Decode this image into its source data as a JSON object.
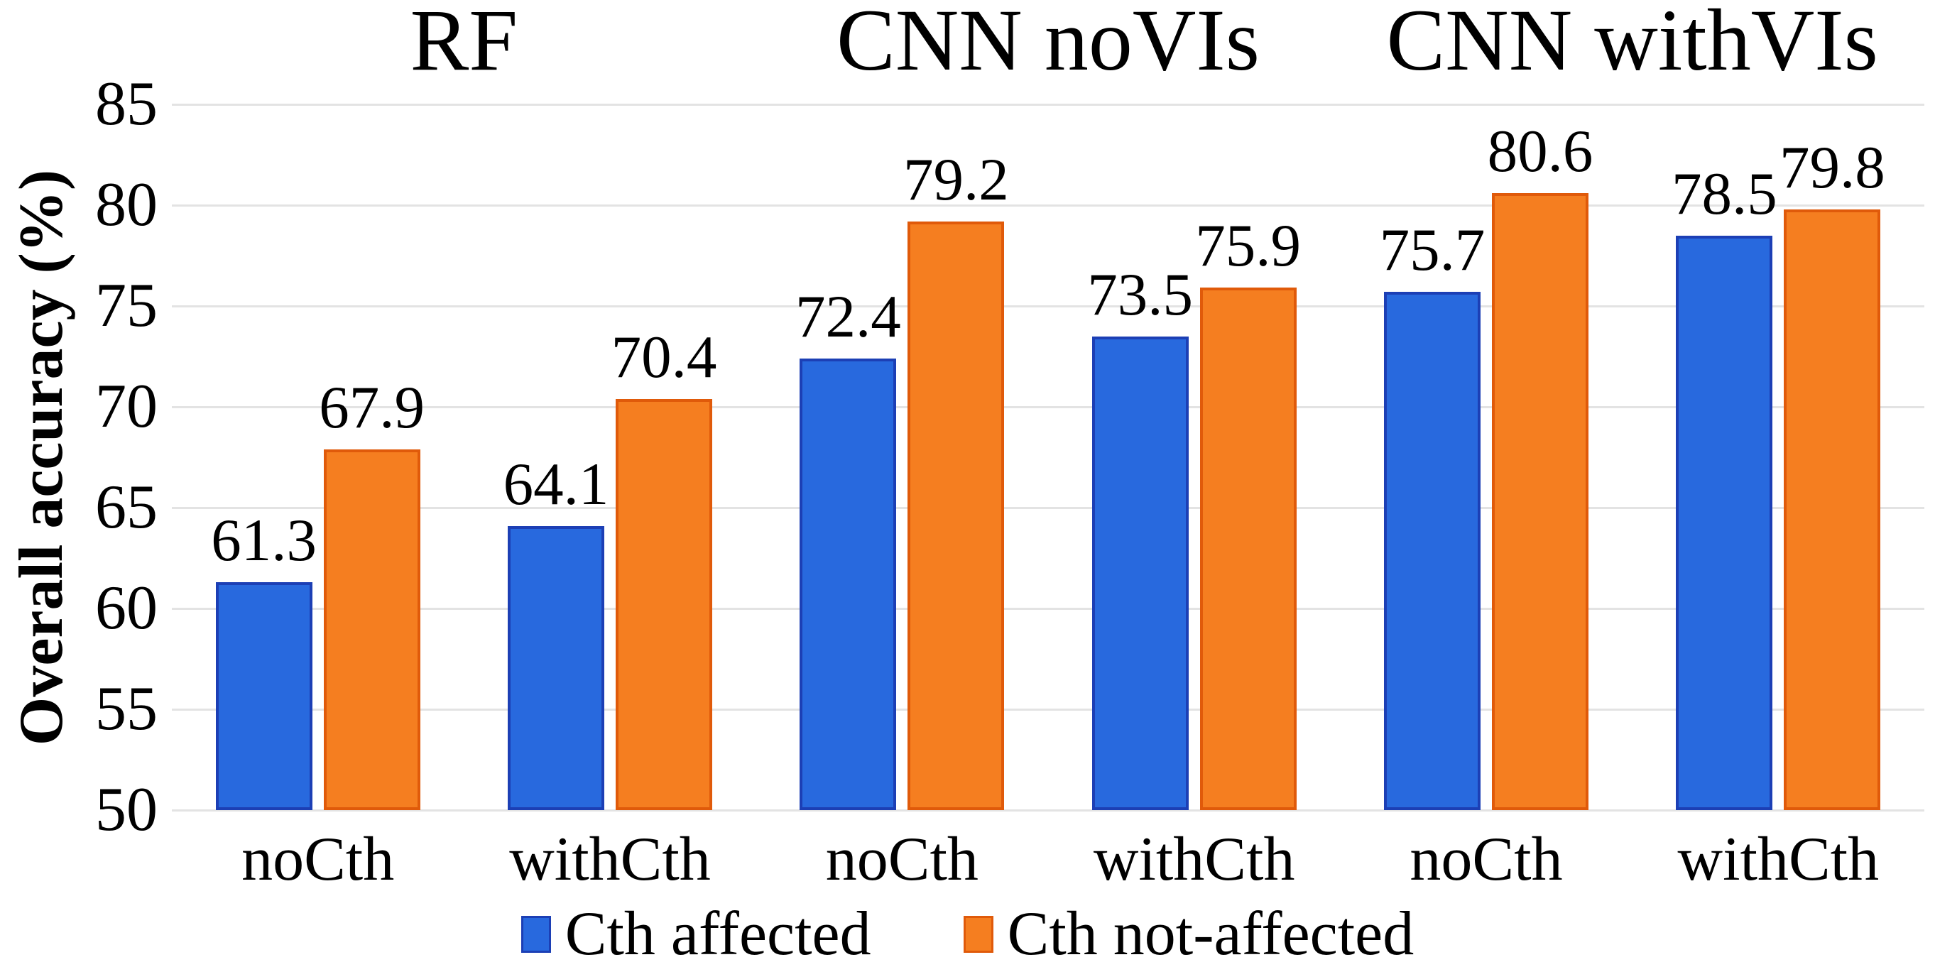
{
  "figure_title": "Overall accuracy comparison bar chart",
  "y_axis": {
    "title": "Overall accuracy (%)",
    "tick_labels": [
      "85",
      "80",
      "75",
      "70",
      "65",
      "60",
      "55",
      "50"
    ]
  },
  "colors": {
    "series_blue_fill": "#2869DE",
    "series_blue_border": "#1C3FB5",
    "series_orange_fill": "#F57E20",
    "series_orange_border": "#E05A0A",
    "gridline": "#E3E3E3",
    "text": "#000000",
    "background": "#FFFFFF"
  },
  "chart_data": {
    "type": "bar",
    "title": "",
    "section_titles": [
      "RF",
      "CNN noVIs",
      "CNN withVIs"
    ],
    "categories": [
      "noCth",
      "withCth",
      "noCth",
      "withCth",
      "noCth",
      "withCth"
    ],
    "series": [
      {
        "name": "Cth affected",
        "fill": "#2869DE",
        "border": "#1C3FB5",
        "values": [
          61.3,
          64.1,
          72.4,
          73.5,
          75.7,
          78.5
        ]
      },
      {
        "name": "Cth not-affected",
        "fill": "#F57E20",
        "border": "#E05A0A",
        "values": [
          67.9,
          70.4,
          79.2,
          75.9,
          80.6,
          79.8
        ]
      }
    ],
    "xlabel": "",
    "ylabel": "Overall accuracy (%)",
    "ylim": [
      50,
      85
    ],
    "ytick_step": 5,
    "yticks": [
      85,
      80,
      75,
      70,
      65,
      60,
      55,
      50
    ],
    "grid": true,
    "data_labels": true,
    "legend_position": "bottom"
  }
}
